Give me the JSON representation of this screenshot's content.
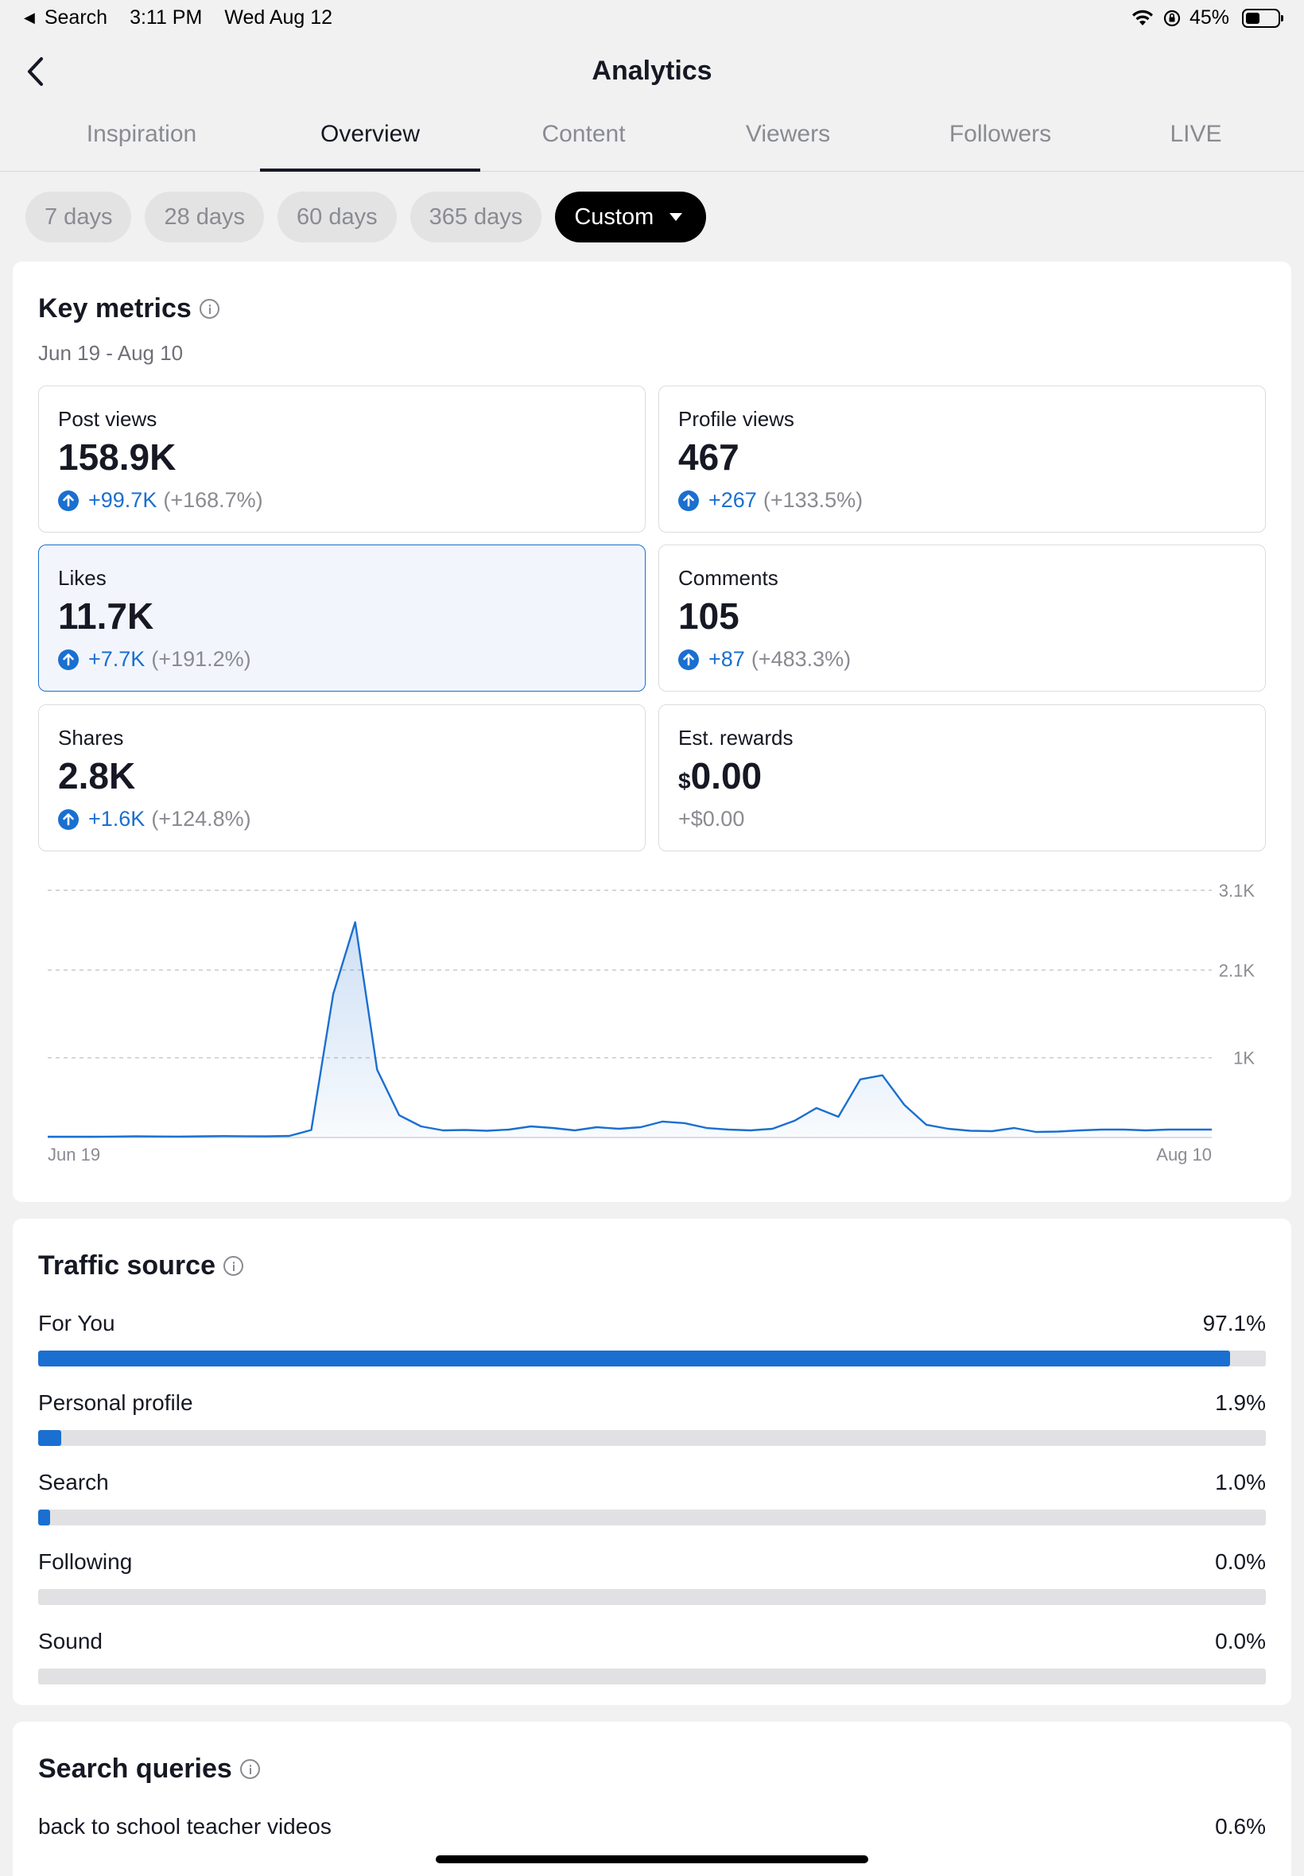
{
  "status_bar": {
    "back_app": "Search",
    "time": "3:11 PM",
    "date": "Wed Aug 12",
    "battery_text": "45%",
    "battery_level": 0.45
  },
  "header": {
    "title": "Analytics"
  },
  "tabs": [
    {
      "label": "Inspiration",
      "active": false
    },
    {
      "label": "Overview",
      "active": true
    },
    {
      "label": "Content",
      "active": false
    },
    {
      "label": "Viewers",
      "active": false
    },
    {
      "label": "Followers",
      "active": false
    },
    {
      "label": "LIVE",
      "active": false
    }
  ],
  "periods": [
    {
      "label": "7 days",
      "selected": false
    },
    {
      "label": "28 days",
      "selected": false
    },
    {
      "label": "60 days",
      "selected": false
    },
    {
      "label": "365 days",
      "selected": false
    },
    {
      "label": "Custom",
      "selected": true
    }
  ],
  "key_metrics": {
    "title": "Key metrics",
    "date_range": "Jun 19 - Aug 10",
    "items": [
      {
        "label": "Post views",
        "value": "158.9K",
        "delta": "+99.7K",
        "delta_pct": "(+168.7%)",
        "up": true
      },
      {
        "label": "Profile views",
        "value": "467",
        "delta": "+267",
        "delta_pct": "(+133.5%)",
        "up": true
      },
      {
        "label": "Likes",
        "value": "11.7K",
        "delta": "+7.7K",
        "delta_pct": "(+191.2%)",
        "up": true,
        "selected": true
      },
      {
        "label": "Comments",
        "value": "105",
        "delta": "+87",
        "delta_pct": "(+483.3%)",
        "up": true
      },
      {
        "label": "Shares",
        "value": "2.8K",
        "delta": "+1.6K",
        "delta_pct": "(+124.8%)",
        "up": true
      },
      {
        "label": "Est. rewards",
        "currency": "$",
        "value": "0.00",
        "delta": "+$0.00",
        "delta_pct": "",
        "up": false
      }
    ]
  },
  "chart_data": {
    "type": "area",
    "series_color": "#1a6fd0",
    "x_start_label": "Jun 19",
    "x_end_label": "Aug 10",
    "y_ticks": [
      {
        "value": 1000,
        "label": "1K"
      },
      {
        "value": 2100,
        "label": "2.1K"
      },
      {
        "value": 3100,
        "label": "3.1K"
      }
    ],
    "ylim": [
      0,
      3100
    ],
    "grid": true,
    "values": [
      10,
      10,
      10,
      12,
      15,
      13,
      12,
      15,
      18,
      16,
      15,
      20,
      95,
      1800,
      2700,
      850,
      280,
      140,
      90,
      95,
      85,
      100,
      140,
      120,
      90,
      130,
      110,
      130,
      200,
      180,
      120,
      100,
      90,
      110,
      210,
      370,
      260,
      730,
      780,
      410,
      160,
      110,
      85,
      80,
      120,
      70,
      75,
      90,
      100,
      100,
      90,
      100,
      100,
      100
    ]
  },
  "traffic": {
    "title": "Traffic source",
    "rows": [
      {
        "name": "For You",
        "pct": "97.1%",
        "fraction": 0.971
      },
      {
        "name": "Personal profile",
        "pct": "1.9%",
        "fraction": 0.019
      },
      {
        "name": "Search",
        "pct": "1.0%",
        "fraction": 0.01
      },
      {
        "name": "Following",
        "pct": "0.0%",
        "fraction": 0.0
      },
      {
        "name": "Sound",
        "pct": "0.0%",
        "fraction": 0.0
      }
    ]
  },
  "search_queries": {
    "title": "Search queries",
    "rows": [
      {
        "query": "back to school teacher videos",
        "pct": "0.6%"
      }
    ]
  }
}
